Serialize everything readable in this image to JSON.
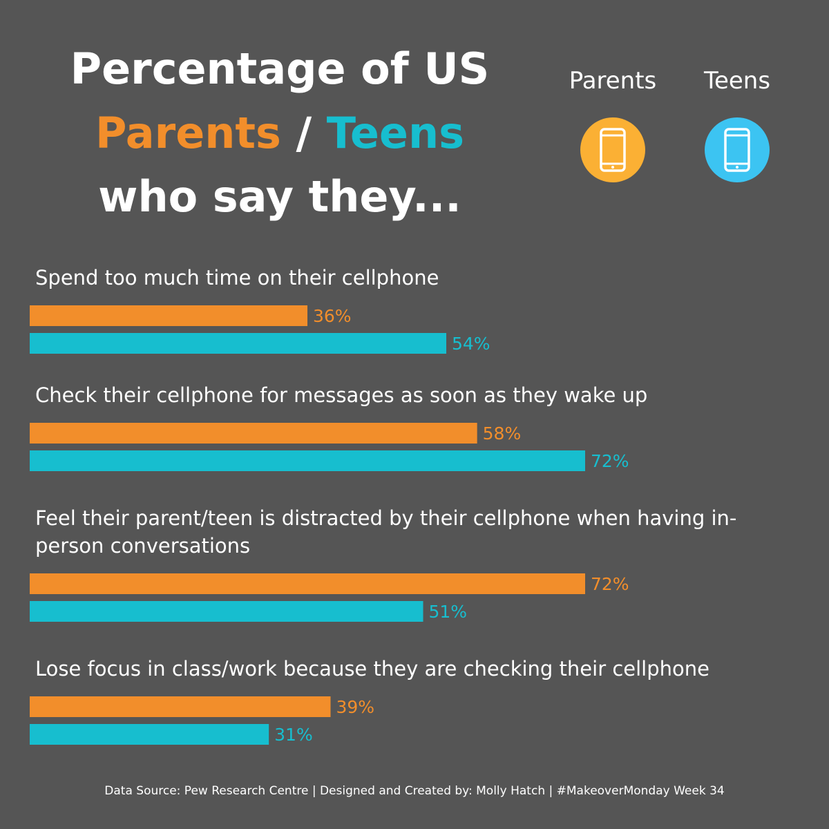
{
  "title": {
    "line1": "Percentage of US",
    "parents": "Parents",
    "separator": "/",
    "teens": "Teens",
    "line3": "who say they..."
  },
  "legend": {
    "parents_label": "Parents",
    "teens_label": "Teens",
    "parents_icon": "phone-icon",
    "teens_icon": "phone-icon"
  },
  "colors": {
    "parents": "#f28e2b",
    "teens": "#17becf",
    "parents_icon_bg": "#fbb034",
    "teens_icon_bg": "#3cc4f2",
    "background": "#555555"
  },
  "chart_data": {
    "type": "bar",
    "orientation": "horizontal",
    "xlim": [
      0,
      100
    ],
    "value_suffix": "%",
    "categories": [
      [
        "Spend too much time on their cellphone"
      ],
      [
        "Check their cellphone for messages as soon as they wake up"
      ],
      [
        "Feel their parent/teen is distracted by their cellphone when having in-",
        "person conversations"
      ],
      [
        "Lose focus in class/work because they are checking their cellphone"
      ]
    ],
    "series": [
      {
        "name": "Parents",
        "values": [
          36,
          58,
          72,
          39
        ]
      },
      {
        "name": "Teens",
        "values": [
          54,
          72,
          51,
          31
        ]
      }
    ],
    "grid": false,
    "legend_position": "top-right"
  },
  "footer": "Data Source: Pew Research Centre | Designed and Created by: Molly Hatch | #MakeoverMonday Week 34"
}
